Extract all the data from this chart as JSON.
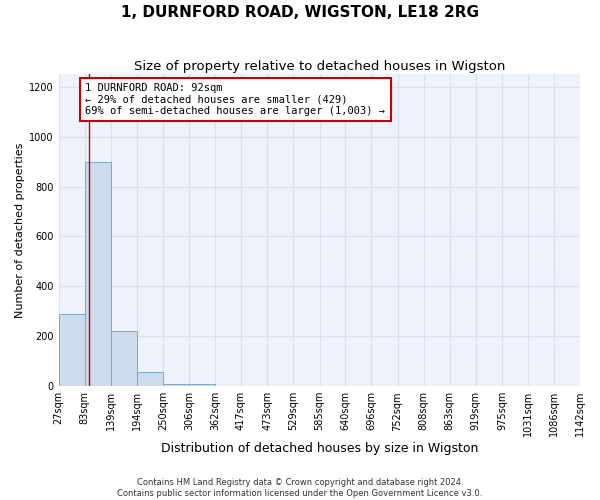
{
  "title": "1, DURNFORD ROAD, WIGSTON, LE18 2RG",
  "subtitle": "Size of property relative to detached houses in Wigston",
  "xlabel": "Distribution of detached houses by size in Wigston",
  "ylabel": "Number of detached properties",
  "footer_line1": "Contains HM Land Registry data © Crown copyright and database right 2024.",
  "footer_line2": "Contains public sector information licensed under the Open Government Licence v3.0.",
  "bin_edges": [
    27,
    83,
    139,
    194,
    250,
    306,
    362,
    417,
    473,
    529,
    585,
    640,
    696,
    752,
    808,
    863,
    919,
    975,
    1031,
    1086,
    1142
  ],
  "bin_labels": [
    "27sqm",
    "83sqm",
    "139sqm",
    "194sqm",
    "250sqm",
    "306sqm",
    "362sqm",
    "417sqm",
    "473sqm",
    "529sqm",
    "585sqm",
    "640sqm",
    "696sqm",
    "752sqm",
    "808sqm",
    "863sqm",
    "919sqm",
    "975sqm",
    "1031sqm",
    "1086sqm",
    "1142sqm"
  ],
  "bar_heights": [
    290,
    900,
    220,
    55,
    10,
    10,
    0,
    0,
    0,
    0,
    0,
    0,
    0,
    0,
    0,
    0,
    0,
    0,
    0,
    0
  ],
  "bar_color": "#ccdcec",
  "bar_edge_color": "#7aaac8",
  "grid_color": "#d8dff0",
  "property_size": 92,
  "vline_color": "#cc0000",
  "annotation_text": "1 DURNFORD ROAD: 92sqm\n← 29% of detached houses are smaller (429)\n69% of semi-detached houses are larger (1,003) →",
  "annotation_box_color": "#cc0000",
  "ylim": [
    0,
    1250
  ],
  "yticks": [
    0,
    200,
    400,
    600,
    800,
    1000,
    1200
  ],
  "background_color": "#ffffff",
  "plot_background_color": "#eef2fb",
  "title_fontsize": 11,
  "subtitle_fontsize": 9.5,
  "xlabel_fontsize": 9,
  "ylabel_fontsize": 8,
  "tick_fontsize": 7,
  "annotation_fontsize": 7.5,
  "footer_fontsize": 6
}
